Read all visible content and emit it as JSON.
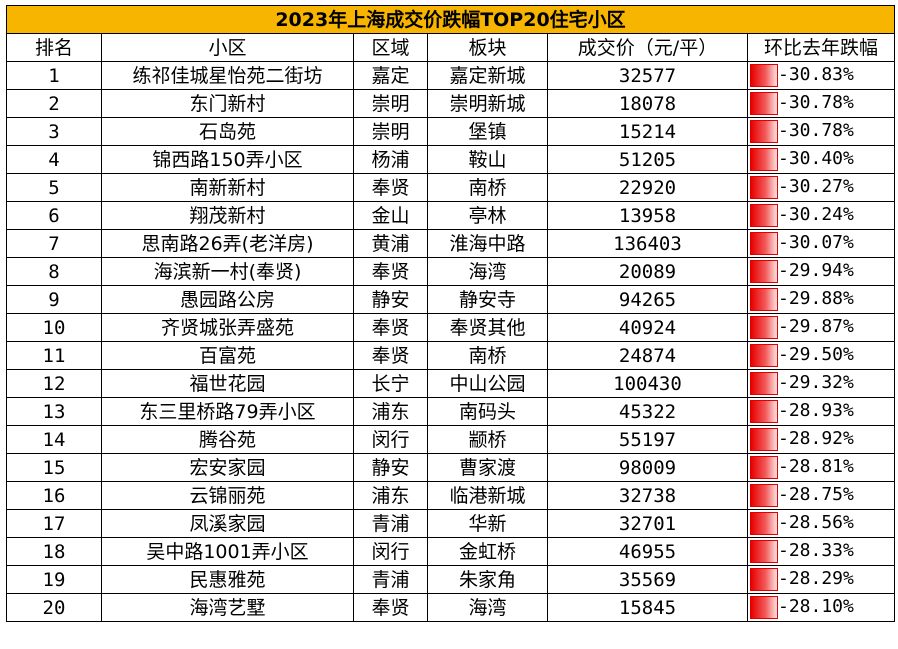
{
  "title": "2023年上海成交价跌幅TOP20住宅小区",
  "headers": [
    "排名",
    "小区",
    "区域",
    "板块",
    "成交价（元/平）",
    "环比去年跌幅"
  ],
  "accent_color": "#f7b500",
  "bar_color": "#e80000",
  "rows": [
    {
      "rank": "1",
      "name": "练祁佳城星怡苑二街坊",
      "district": "嘉定",
      "block": "嘉定新城",
      "price": "32577",
      "drop": "-30.83%"
    },
    {
      "rank": "2",
      "name": "东门新村",
      "district": "崇明",
      "block": "崇明新城",
      "price": "18078",
      "drop": "-30.78%"
    },
    {
      "rank": "3",
      "name": "石岛苑",
      "district": "崇明",
      "block": "堡镇",
      "price": "15214",
      "drop": "-30.78%"
    },
    {
      "rank": "4",
      "name": "锦西路150弄小区",
      "district": "杨浦",
      "block": "鞍山",
      "price": "51205",
      "drop": "-30.40%"
    },
    {
      "rank": "5",
      "name": "南新新村",
      "district": "奉贤",
      "block": "南桥",
      "price": "22920",
      "drop": "-30.27%"
    },
    {
      "rank": "6",
      "name": "翔茂新村",
      "district": "金山",
      "block": "亭林",
      "price": "13958",
      "drop": "-30.24%"
    },
    {
      "rank": "7",
      "name": "思南路26弄(老洋房)",
      "district": "黄浦",
      "block": "淮海中路",
      "price": "136403",
      "drop": "-30.07%"
    },
    {
      "rank": "8",
      "name": "海滨新一村(奉贤)",
      "district": "奉贤",
      "block": "海湾",
      "price": "20089",
      "drop": "-29.94%"
    },
    {
      "rank": "9",
      "name": "愚园路公房",
      "district": "静安",
      "block": "静安寺",
      "price": "94265",
      "drop": "-29.88%"
    },
    {
      "rank": "10",
      "name": "齐贤城张弄盛苑",
      "district": "奉贤",
      "block": "奉贤其他",
      "price": "40924",
      "drop": "-29.87%"
    },
    {
      "rank": "11",
      "name": "百富苑",
      "district": "奉贤",
      "block": "南桥",
      "price": "24874",
      "drop": "-29.50%"
    },
    {
      "rank": "12",
      "name": "福世花园",
      "district": "长宁",
      "block": "中山公园",
      "price": "100430",
      "drop": "-29.32%"
    },
    {
      "rank": "13",
      "name": "东三里桥路79弄小区",
      "district": "浦东",
      "block": "南码头",
      "price": "45322",
      "drop": "-28.93%"
    },
    {
      "rank": "14",
      "name": "腾谷苑",
      "district": "闵行",
      "block": "颛桥",
      "price": "55197",
      "drop": "-28.92%"
    },
    {
      "rank": "15",
      "name": "宏安家园",
      "district": "静安",
      "block": "曹家渡",
      "price": "98009",
      "drop": "-28.81%"
    },
    {
      "rank": "16",
      "name": "云锦丽苑",
      "district": "浦东",
      "block": "临港新城",
      "price": "32738",
      "drop": "-28.75%"
    },
    {
      "rank": "17",
      "name": "凤溪家园",
      "district": "青浦",
      "block": "华新",
      "price": "32701",
      "drop": "-28.56%"
    },
    {
      "rank": "18",
      "name": "吴中路1001弄小区",
      "district": "闵行",
      "block": "金虹桥",
      "price": "46955",
      "drop": "-28.33%"
    },
    {
      "rank": "19",
      "name": "民惠雅苑",
      "district": "青浦",
      "block": "朱家角",
      "price": "35569",
      "drop": "-28.29%"
    },
    {
      "rank": "20",
      "name": "海湾艺墅",
      "district": "奉贤",
      "block": "海湾",
      "price": "15845",
      "drop": "-28.10%"
    }
  ]
}
